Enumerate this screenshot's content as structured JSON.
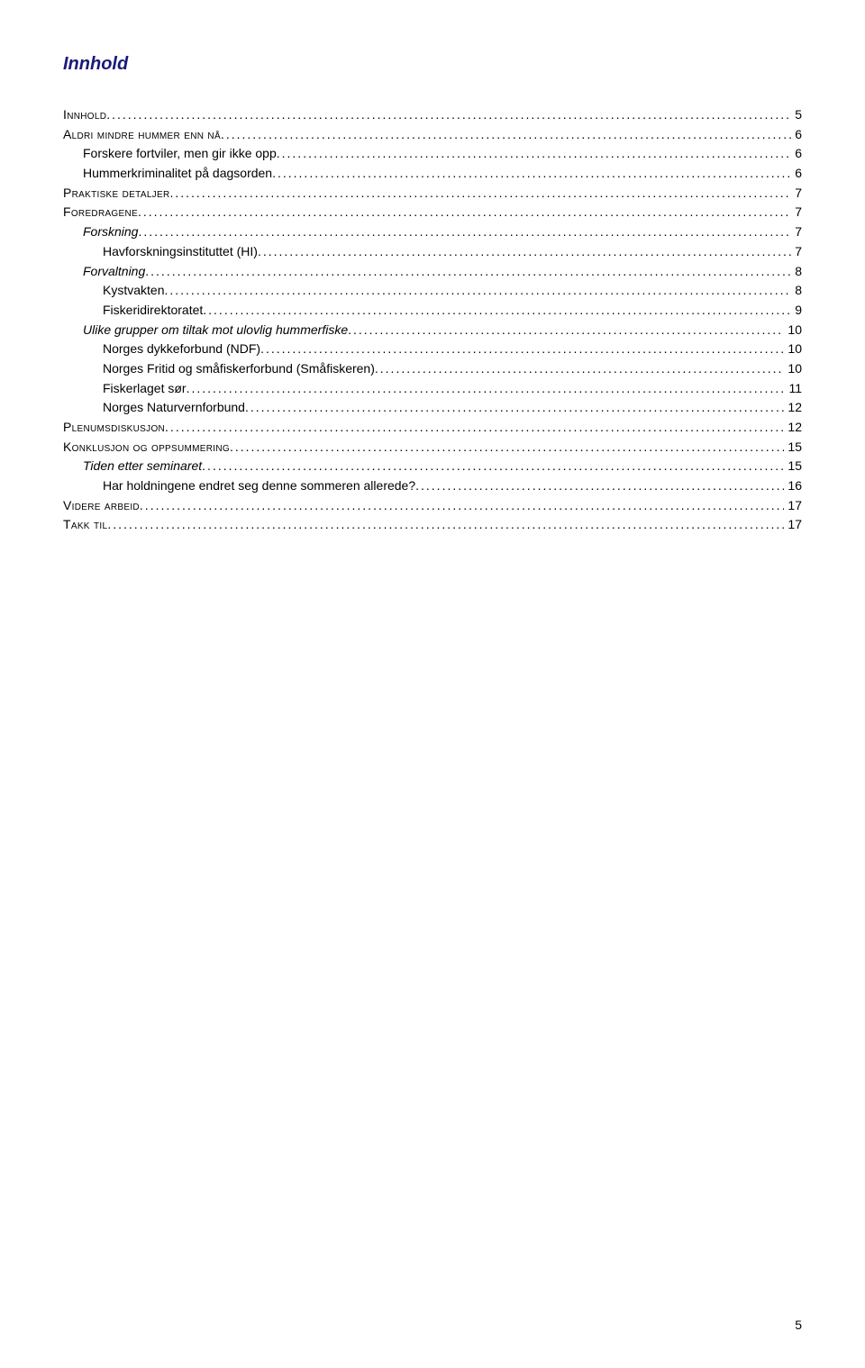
{
  "title": "Innhold",
  "toc": [
    {
      "label": "Innhold",
      "page": "5",
      "indent": 0,
      "style": "sc"
    },
    {
      "label": "Aldri mindre hummer enn nå",
      "page": "6",
      "indent": 0,
      "style": "sc"
    },
    {
      "label": "Forskere fortviler, men gir ikke opp",
      "page": "6",
      "indent": 1,
      "style": "plain"
    },
    {
      "label": "Hummerkriminalitet på dagsorden",
      "page": "6",
      "indent": 1,
      "style": "plain"
    },
    {
      "label": "Praktiske detaljer",
      "page": "7",
      "indent": 0,
      "style": "sc"
    },
    {
      "label": "Foredragene",
      "page": "7",
      "indent": 0,
      "style": "sc"
    },
    {
      "label": "Forskning",
      "page": "7",
      "indent": 1,
      "style": "italic"
    },
    {
      "label": "Havforskningsinstituttet (HI)",
      "page": "7",
      "indent": 2,
      "style": "plain"
    },
    {
      "label": "Forvaltning",
      "page": "8",
      "indent": 1,
      "style": "italic"
    },
    {
      "label": "Kystvakten",
      "page": "8",
      "indent": 2,
      "style": "plain"
    },
    {
      "label": "Fiskeridirektoratet",
      "page": "9",
      "indent": 2,
      "style": "plain"
    },
    {
      "label": "Ulike grupper om tiltak mot ulovlig hummerfiske",
      "page": "10",
      "indent": 1,
      "style": "italic"
    },
    {
      "label": "Norges dykkeforbund (NDF)",
      "page": "10",
      "indent": 2,
      "style": "plain"
    },
    {
      "label": "Norges Fritid og småfiskerforbund (Småfiskeren)",
      "page": "10",
      "indent": 2,
      "style": "plain"
    },
    {
      "label": "Fiskerlaget sør",
      "page": "11",
      "indent": 2,
      "style": "plain"
    },
    {
      "label": "Norges Naturvernforbund",
      "page": "12",
      "indent": 2,
      "style": "plain"
    },
    {
      "label": "Plenumsdiskusjon",
      "page": "12",
      "indent": 0,
      "style": "sc"
    },
    {
      "label": "Konklusjon og oppsummering",
      "page": "15",
      "indent": 0,
      "style": "sc"
    },
    {
      "label": "Tiden etter seminaret",
      "page": "15",
      "indent": 1,
      "style": "italic"
    },
    {
      "label": "Har holdningene endret seg denne sommeren allerede?",
      "page": "16",
      "indent": 2,
      "style": "plain"
    },
    {
      "label": "Videre arbeid",
      "page": "17",
      "indent": 0,
      "style": "sc"
    },
    {
      "label": "Takk til",
      "page": "17",
      "indent": 0,
      "style": "sc"
    }
  ],
  "footer_page_number": "5",
  "colors": {
    "title_color": "#1a1a7a",
    "text_color": "#000000",
    "background": "#ffffff"
  },
  "typography": {
    "title_fontsize_pt": 15,
    "body_fontsize_pt": 10,
    "font_family": "Verdana"
  }
}
